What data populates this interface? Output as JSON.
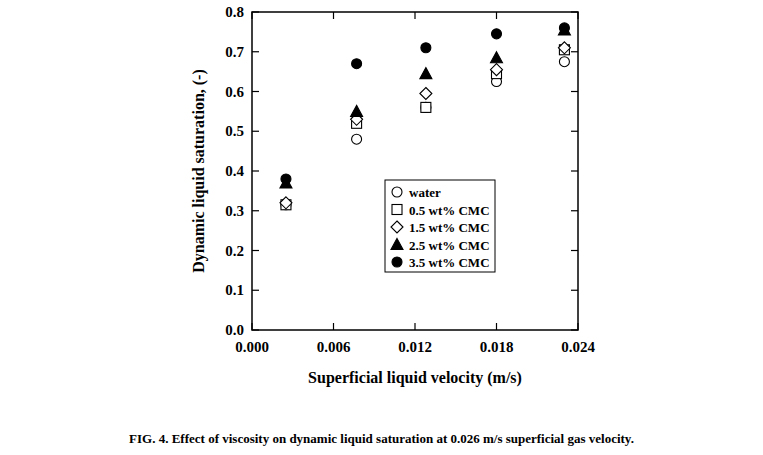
{
  "chart_data": {
    "type": "scatter",
    "title": "FIG. 4. Effect of viscosity on dynamic liquid saturation at 0.026 m/s superficial gas velocity.",
    "x_label": "Superficial liquid velocity (m/s)",
    "y_label": "Dynamic liquid saturation, (-)",
    "xlim": [
      0,
      0.024
    ],
    "ylim": [
      0,
      0.8
    ],
    "xticks": [
      {
        "value": 0,
        "label": "0.000"
      },
      0.006,
      0.012,
      0.018,
      0.024
    ],
    "yticks": [
      {
        "value": 0,
        "label": "0.0"
      },
      0.1,
      0.2,
      0.3,
      0.4,
      0.5,
      0.6,
      0.7,
      0.8
    ],
    "grid": false,
    "legend": "lower right",
    "series": [
      {
        "name": "water",
        "color": "#000000",
        "marker": "open-circle",
        "x": [
          0.0025,
          0.0077,
          0.0128,
          0.018,
          0.023
        ],
        "values": [
          0.315,
          0.48,
          0.56,
          0.625,
          0.675
        ]
      },
      {
        "name": "0.5 wt% CMC",
        "color": "#000000",
        "marker": "open-square",
        "x": [
          0.0025,
          0.0077,
          0.0128,
          0.018,
          0.023
        ],
        "values": [
          0.315,
          0.52,
          0.56,
          0.645,
          0.705
        ]
      },
      {
        "name": "1.5 wt% CMC",
        "color": "#000000",
        "marker": "open-diamond",
        "x": [
          0.0025,
          0.0077,
          0.0128,
          0.018,
          0.023
        ],
        "values": [
          0.32,
          0.53,
          0.595,
          0.655,
          0.71
        ]
      },
      {
        "name": "2.5 wt% CMC",
        "color": "#000000",
        "marker": "filled-triangle",
        "x": [
          0.0025,
          0.0077,
          0.0128,
          0.018,
          0.023
        ],
        "values": [
          0.37,
          0.55,
          0.645,
          0.685,
          0.755
        ]
      },
      {
        "name": "3.5 wt% CMC",
        "color": "#000000",
        "marker": "filled-circle",
        "x": [
          0.0025,
          0.0077,
          0.0128,
          0.018,
          0.023
        ],
        "values": [
          0.38,
          0.67,
          0.71,
          0.745,
          0.76
        ]
      }
    ]
  }
}
